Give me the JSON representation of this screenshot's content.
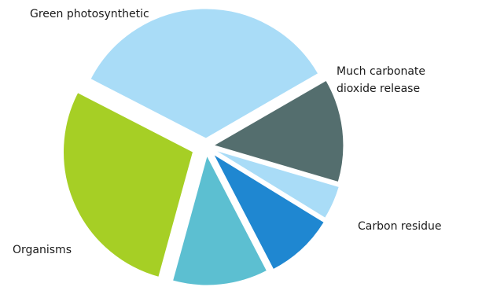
{
  "chart_data": {
    "type": "pie",
    "exploded": true,
    "title": "",
    "slices": [
      {
        "label": "Much carbonate dioxide release",
        "label_lines": [
          "Much carbonate",
          "dioxide release"
        ],
        "value": 12.9,
        "color": "#546e6e"
      },
      {
        "label": "",
        "label_lines": [],
        "value": 4.2,
        "color": "#a9dcf7"
      },
      {
        "label": "Carbon residue",
        "label_lines": [
          "Carbon residue"
        ],
        "value": 8.6,
        "color": "#1f87d1"
      },
      {
        "label": "",
        "label_lines": [],
        "value": 11.9,
        "color": "#5cbfd1"
      },
      {
        "label": "Organisms",
        "label_lines": [
          "Organisms"
        ],
        "value": 28.3,
        "color": "#a6cf25"
      },
      {
        "label": "Green photosynthetic",
        "label_lines": [
          "Green photosynthetic"
        ],
        "value": 34.1,
        "color": "#a9dcf7"
      }
    ]
  }
}
